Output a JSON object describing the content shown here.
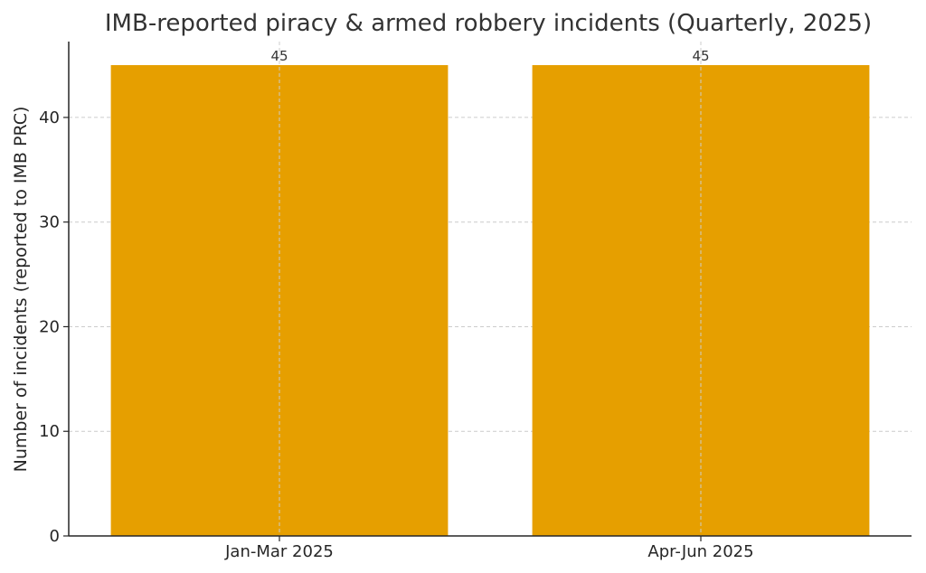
{
  "chart_data": {
    "type": "bar",
    "title": "IMB-reported piracy & armed robbery incidents (Quarterly, 2025)",
    "xlabel": "",
    "ylabel": "Number of incidents (reported to IMB PRC)",
    "categories": [
      "Jan-Mar 2025",
      "Apr-Jun 2025"
    ],
    "values": [
      45,
      45
    ],
    "data_labels": [
      "45",
      "45"
    ],
    "ylim": [
      0,
      47.25
    ],
    "yticks": [
      0,
      10,
      20,
      30,
      40
    ],
    "grid": true,
    "legend": "none",
    "bar_color": "#E69F00"
  }
}
